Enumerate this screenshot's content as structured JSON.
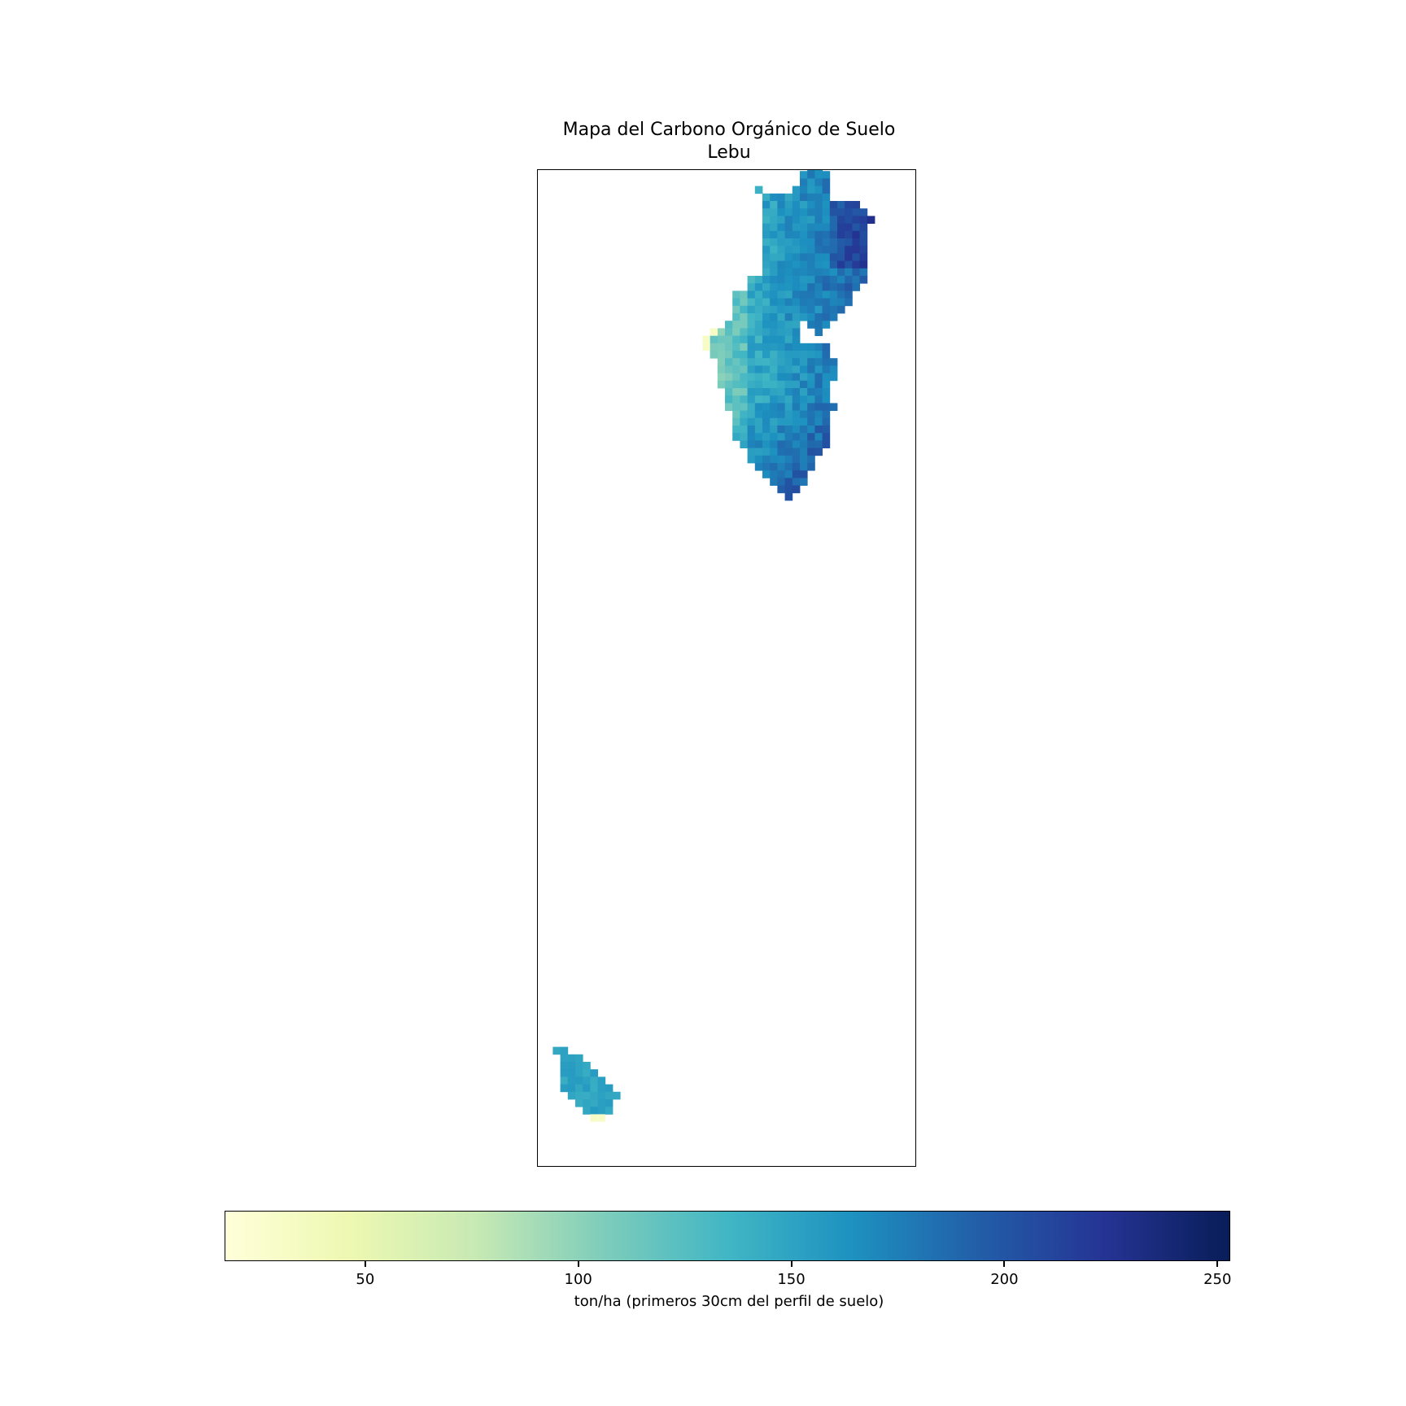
{
  "title": {
    "line1": "Mapa del Carbono Orgánico de Suelo",
    "line2": "Lebu"
  },
  "map": {
    "colormap": "YlGnBu",
    "value_unit": "ton/ha",
    "regions": [
      {
        "name": "main-landmass",
        "typical_value_range": [
          120,
          250
        ]
      },
      {
        "name": "southern-island",
        "typical_value_range": [
          140,
          165
        ]
      }
    ]
  },
  "colorbar": {
    "min": 17,
    "max": 253,
    "ticks": [
      50,
      100,
      150,
      200,
      250
    ],
    "tick_labels": [
      "50",
      "100",
      "150",
      "200",
      "250"
    ],
    "label": "ton/ha (primeros 30cm del perfil de suelo)",
    "colors": [
      "#ffffd9",
      "#edf8b1",
      "#c7e9b4",
      "#7fcdbb",
      "#41b6c4",
      "#1d91c0",
      "#225ea8",
      "#253494",
      "#081d58"
    ]
  }
}
